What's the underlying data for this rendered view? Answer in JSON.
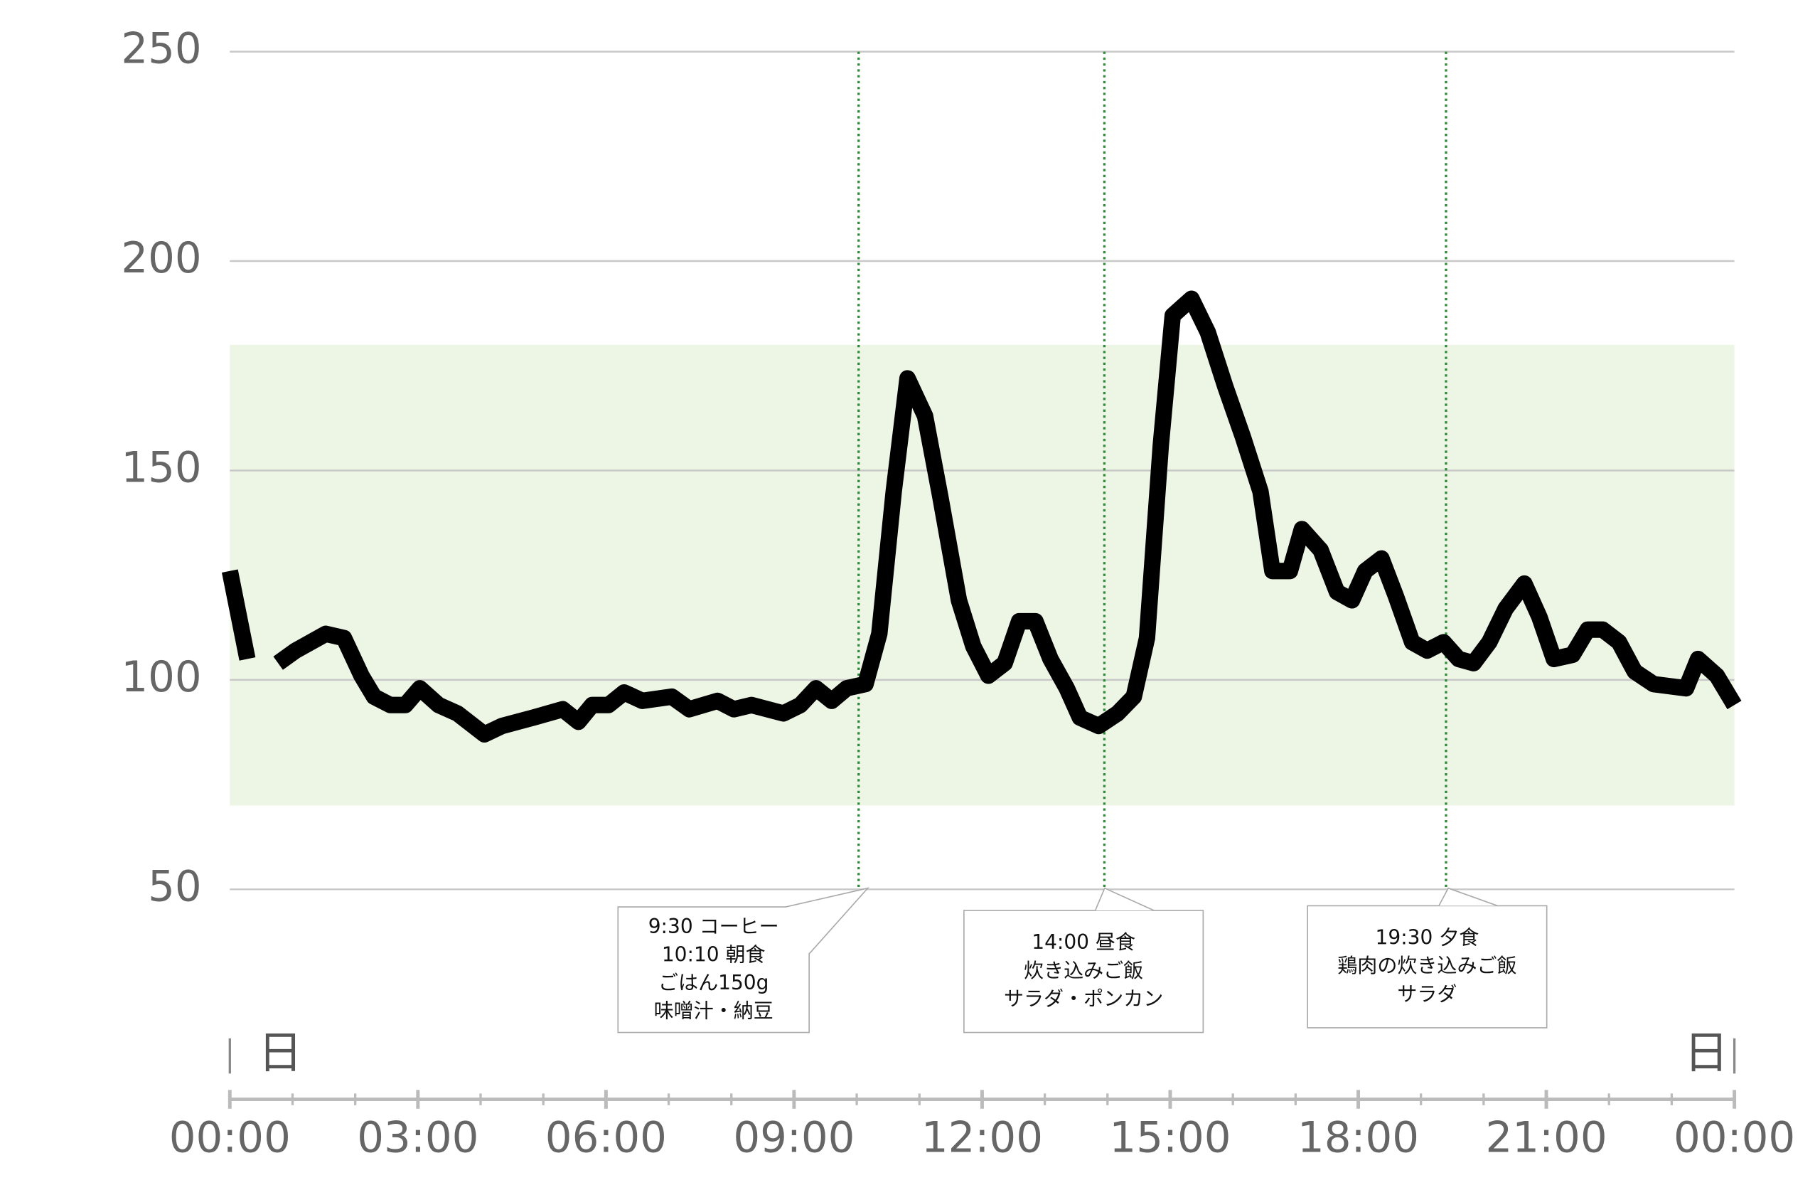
{
  "chart_data": {
    "type": "line",
    "x": [
      0,
      0.28,
      0.5,
      0.77,
      1.05,
      1.53,
      1.82,
      2.1,
      2.3,
      2.56,
      2.8,
      3.03,
      3.33,
      3.63,
      4.06,
      4.34,
      4.84,
      5.31,
      5.56,
      5.78,
      6.04,
      6.29,
      6.58,
      7.05,
      7.33,
      7.78,
      8.04,
      8.32,
      8.83,
      9.1,
      9.35,
      9.6,
      9.84,
      10.14,
      10.36,
      10.59,
      10.81,
      11.09,
      11.33,
      11.63,
      11.86,
      12.1,
      12.36,
      12.59,
      12.85,
      13.09,
      13.35,
      13.56,
      13.86,
      14.16,
      14.42,
      14.63,
      14.85,
      15.04,
      15.34,
      15.6,
      15.88,
      16.16,
      16.44,
      16.63,
      16.91,
      17.1,
      17.4,
      17.66,
      17.9,
      18.11,
      18.37,
      18.6,
      18.86,
      19.1,
      19.36,
      19.6,
      19.84,
      20.09,
      20.35,
      20.65,
      20.89,
      21.12,
      21.42,
      21.66,
      21.9,
      22.16,
      22.41,
      22.71,
      23.23,
      23.42,
      23.72,
      24
    ],
    "series": [
      {
        "color": "#000000",
        "values": [
          126,
          105,
          null,
          104,
          107,
          111,
          110,
          101,
          96,
          94,
          94,
          98,
          94,
          92,
          87,
          89,
          91,
          93,
          90,
          94,
          94,
          97,
          95,
          96,
          93,
          95,
          93,
          94,
          92,
          94,
          98,
          95,
          98,
          99,
          111,
          145,
          172,
          163,
          144,
          119,
          108,
          101,
          104,
          114,
          114,
          105,
          98,
          91,
          89,
          92,
          96,
          110,
          156,
          187,
          191,
          183,
          170,
          158,
          145,
          126,
          126,
          136,
          131,
          121,
          119,
          126,
          129,
          120,
          109,
          107,
          109,
          105,
          104,
          109,
          117,
          123,
          115,
          105,
          106,
          112,
          112,
          109,
          102,
          99,
          98,
          105,
          101,
          94
        ]
      }
    ],
    "target_range": [
      70,
      180
    ],
    "target_color": "#edf5e4",
    "xlim": [
      0,
      24
    ],
    "ylim": [
      50,
      250
    ],
    "yticks": [
      50,
      100,
      150,
      200,
      250
    ],
    "xticks": [
      {
        "value": 0,
        "label": "00:00"
      },
      {
        "value": 3,
        "label": "03:00"
      },
      {
        "value": 6,
        "label": "06:00"
      },
      {
        "value": 9,
        "label": "09:00"
      },
      {
        "value": 12,
        "label": "12:00"
      },
      {
        "value": 15,
        "label": "15:00"
      },
      {
        "value": 18,
        "label": "18:00"
      },
      {
        "value": 21,
        "label": "21:00"
      },
      {
        "value": 24,
        "label": "00:00"
      }
    ],
    "xminorticks": [
      1,
      2,
      4,
      5,
      7,
      8,
      10,
      11,
      13,
      14,
      16,
      17,
      19,
      20,
      22,
      23
    ],
    "grid": true,
    "x_start_label": "日",
    "x_end_label": "日",
    "annotations": [
      {
        "x": 10.03,
        "lines": [
          "9:30 コーヒー",
          "10:10 朝食",
          "ごはん150g",
          "味噌汁・納豆"
        ]
      },
      {
        "x": 13.95,
        "lines": [
          "14:00 昼食",
          "炊き込みご飯",
          "サラダ・ポンカン"
        ]
      },
      {
        "x": 19.4,
        "lines": [
          "19:30 夕食",
          "鶏肉の炊き込みご飯",
          "サラダ"
        ]
      }
    ]
  }
}
